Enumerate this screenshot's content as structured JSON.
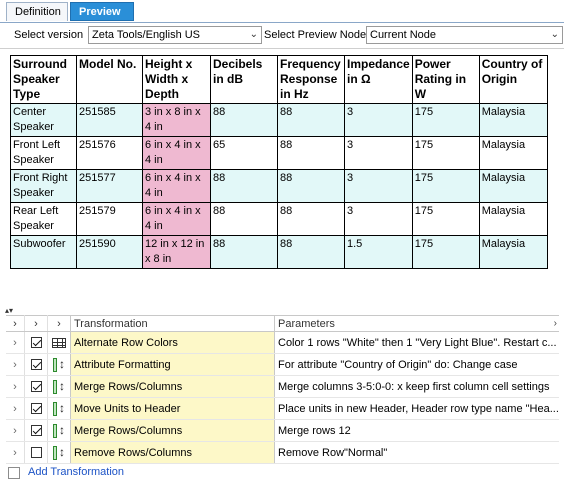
{
  "tabs": {
    "definition": "Definition",
    "preview": "Preview"
  },
  "toolbar": {
    "version_label": "Select version",
    "version_value": "Zeta Tools/English US",
    "node_label": "Select Preview Node",
    "node_value": "Current Node"
  },
  "grid": {
    "headers": [
      "Surround Speaker Type",
      "Model No.",
      "Height x Width x Depth",
      "Decibels in dB",
      "Frequency Response in Hz",
      "Impedance in Ω",
      "Power Rating in W",
      "Country of Origin"
    ],
    "rows": [
      [
        "Center Speaker",
        "251585",
        "3 in x 8 in x 4 in",
        "88",
        "88",
        "3",
        "175",
        "Malaysia"
      ],
      [
        "Front Left Speaker",
        "251576",
        "6 in x 4 in x 4 in",
        "65",
        "88",
        "3",
        "175",
        "Malaysia"
      ],
      [
        "Front Right Speaker",
        "251577",
        "6 in x 4 in x 4 in",
        "88",
        "88",
        "3",
        "175",
        "Malaysia"
      ],
      [
        "Rear Left Speaker",
        "251579",
        "6 in x 4 in x 4 in",
        "88",
        "88",
        "3",
        "175",
        "Malaysia"
      ],
      [
        "Subwoofer",
        "251590",
        "12 in x 12 in x 8 in",
        "88",
        "88",
        "1.5",
        "175",
        "Malaysia"
      ]
    ]
  },
  "transformations": {
    "col_transformation": "Transformation",
    "col_parameters": "Parameters",
    "items": [
      {
        "checked": true,
        "icon": "grid-icon",
        "name": "Alternate Row Colors",
        "params": "Color 1 rows \"White\" then 1 \"Very Light Blue\".  Restart c..."
      },
      {
        "checked": true,
        "icon": "merge-icon",
        "name": "Attribute Formatting",
        "params": "For attribute \"Country of Origin\" do: Change case"
      },
      {
        "checked": true,
        "icon": "merge-icon",
        "name": "Merge Rows/Columns",
        "params": "Merge columns 3-5:0-0: x  keep first column cell settings"
      },
      {
        "checked": true,
        "icon": "merge-icon",
        "name": "Move Units to Header",
        "params": "Place units in new Header, Header row type name \"Hea..."
      },
      {
        "checked": true,
        "icon": "merge-icon",
        "name": "Merge Rows/Columns",
        "params": "Merge rows 12"
      },
      {
        "checked": false,
        "icon": "merge-icon",
        "name": "Remove Rows/Columns",
        "params": "Remove Row\"Normal\""
      }
    ],
    "add_label": "Add Transformation"
  },
  "colors": {
    "accent": "#2a8fd8",
    "pink": "#efb9d1",
    "light_blue": "#e2f8f8",
    "yellow": "#fdf8c8",
    "link": "#1c53c6"
  }
}
